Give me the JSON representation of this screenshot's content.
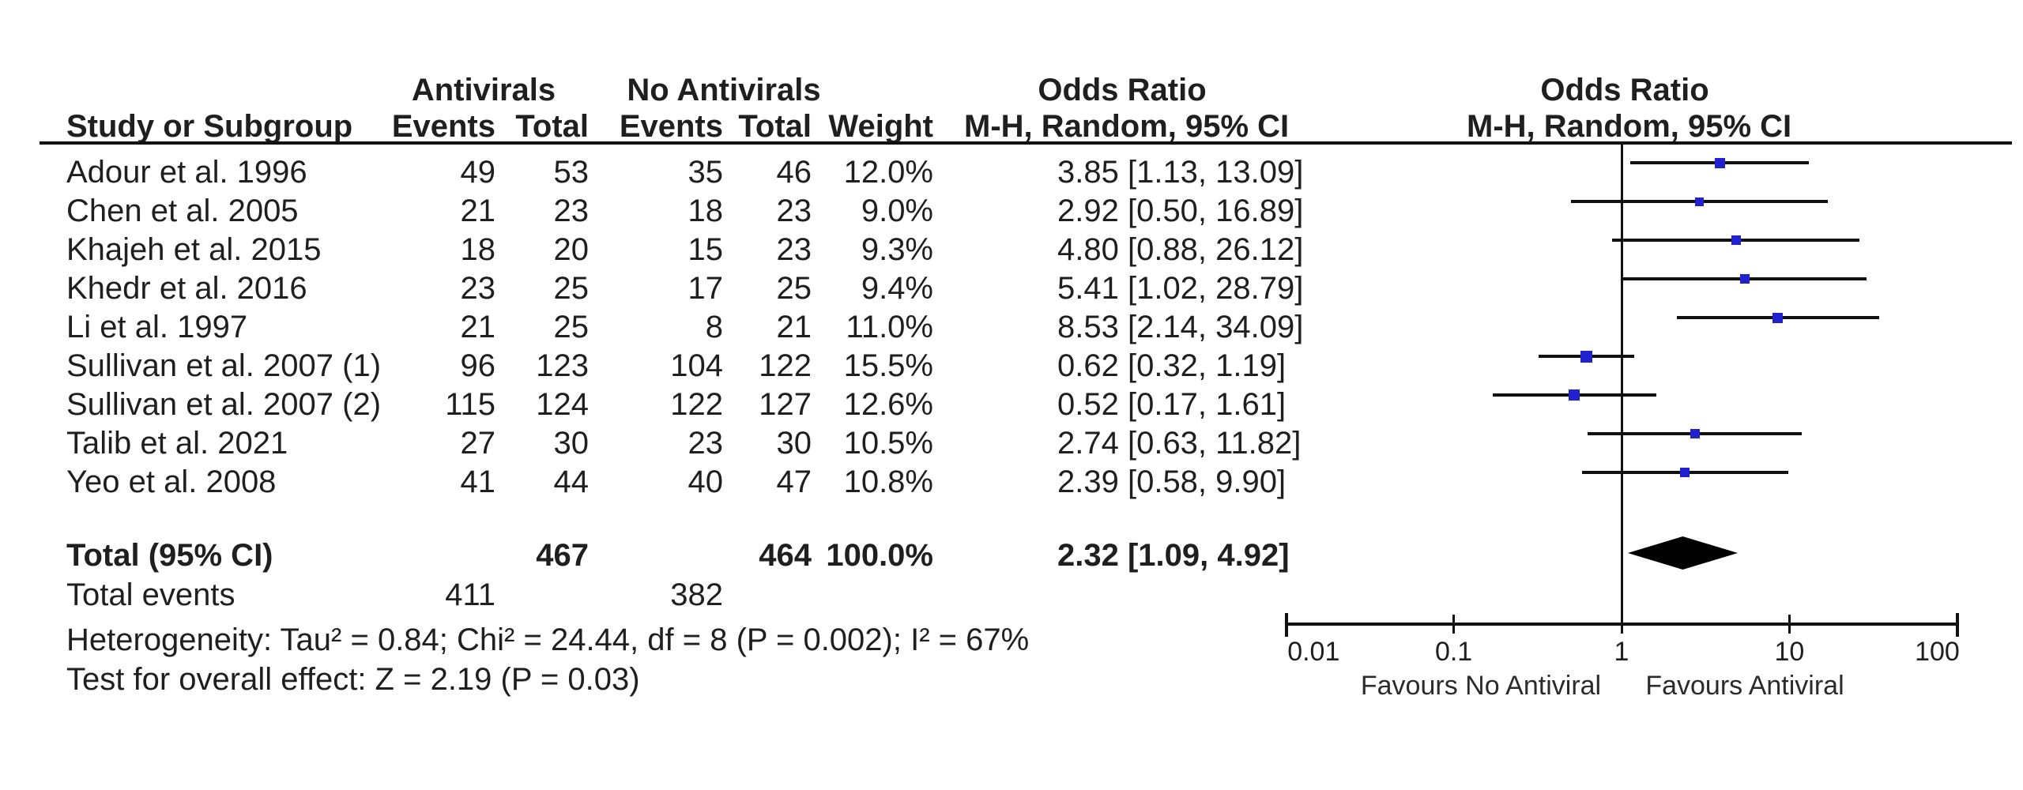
{
  "colors": {
    "marker_blue": "#2121cf",
    "ink": "#1f1f1f",
    "line_black": "#111111",
    "diamond_black": "#000000"
  },
  "header": {
    "group1": "Antivirals",
    "group2": "No Antivirals",
    "study_col": "Study or Subgroup",
    "events_col": "Events",
    "total_col": "Total",
    "weight_col": "Weight",
    "or_col_title": "Odds Ratio",
    "or_col_subtitle": "M-H, Random, 95% CI",
    "plot_title": "Odds Ratio",
    "plot_subtitle": "M-H, Random, 95% CI"
  },
  "chart_data": {
    "type": "forest",
    "effect_measure": "Odds Ratio, M-H, Random, 95% CI",
    "x_scale": "log10",
    "x_range": [
      0.01,
      100
    ],
    "x_ticks": [
      0.01,
      0.1,
      1,
      10,
      100
    ],
    "x_tick_labels": [
      "0.01",
      "0.1",
      "1",
      "10",
      "100"
    ],
    "axis_left_label": "Favours No Antiviral",
    "axis_right_label": "Favours Antiviral",
    "null_line": 1,
    "studies": [
      {
        "name": "Adour et al. 1996",
        "events1": 49,
        "total1": 53,
        "events2": 35,
        "total2": 46,
        "weight": "12.0%",
        "weight_pct": 12.0,
        "or": 3.85,
        "ci_low": 1.13,
        "ci_high": 13.09,
        "or_ci_text": "3.85 [1.13, 13.09]"
      },
      {
        "name": "Chen et al. 2005",
        "events1": 21,
        "total1": 23,
        "events2": 18,
        "total2": 23,
        "weight": "9.0%",
        "weight_pct": 9.0,
        "or": 2.92,
        "ci_low": 0.5,
        "ci_high": 16.89,
        "or_ci_text": "2.92 [0.50, 16.89]"
      },
      {
        "name": "Khajeh et al. 2015",
        "events1": 18,
        "total1": 20,
        "events2": 15,
        "total2": 23,
        "weight": "9.3%",
        "weight_pct": 9.3,
        "or": 4.8,
        "ci_low": 0.88,
        "ci_high": 26.12,
        "or_ci_text": "4.80 [0.88, 26.12]"
      },
      {
        "name": "Khedr et al. 2016",
        "events1": 23,
        "total1": 25,
        "events2": 17,
        "total2": 25,
        "weight": "9.4%",
        "weight_pct": 9.4,
        "or": 5.41,
        "ci_low": 1.02,
        "ci_high": 28.79,
        "or_ci_text": "5.41 [1.02, 28.79]"
      },
      {
        "name": "Li et al. 1997",
        "events1": 21,
        "total1": 25,
        "events2": 8,
        "total2": 21,
        "weight": "11.0%",
        "weight_pct": 11.0,
        "or": 8.53,
        "ci_low": 2.14,
        "ci_high": 34.09,
        "or_ci_text": "8.53 [2.14, 34.09]"
      },
      {
        "name": "Sullivan et al. 2007 (1)",
        "events1": 96,
        "total1": 123,
        "events2": 104,
        "total2": 122,
        "weight": "15.5%",
        "weight_pct": 15.5,
        "or": 0.62,
        "ci_low": 0.32,
        "ci_high": 1.19,
        "or_ci_text": "0.62 [0.32, 1.19]"
      },
      {
        "name": "Sullivan et al. 2007 (2)",
        "events1": 115,
        "total1": 124,
        "events2": 122,
        "total2": 127,
        "weight": "12.6%",
        "weight_pct": 12.6,
        "or": 0.52,
        "ci_low": 0.17,
        "ci_high": 1.61,
        "or_ci_text": "0.52 [0.17, 1.61]"
      },
      {
        "name": "Talib et al. 2021",
        "events1": 27,
        "total1": 30,
        "events2": 23,
        "total2": 30,
        "weight": "10.5%",
        "weight_pct": 10.5,
        "or": 2.74,
        "ci_low": 0.63,
        "ci_high": 11.82,
        "or_ci_text": "2.74 [0.63, 11.82]"
      },
      {
        "name": "Yeo et al. 2008",
        "events1": 41,
        "total1": 44,
        "events2": 40,
        "total2": 47,
        "weight": "10.8%",
        "weight_pct": 10.8,
        "or": 2.39,
        "ci_low": 0.58,
        "ci_high": 9.9,
        "or_ci_text": "2.39 [0.58, 9.90]"
      }
    ],
    "total": {
      "label": "Total (95% CI)",
      "total1": 467,
      "total2": 464,
      "weight": "100.0%",
      "or": 2.32,
      "ci_low": 1.09,
      "ci_high": 4.92,
      "or_ci_text": "2.32 [1.09, 4.92]"
    },
    "total_events": {
      "label": "Total events",
      "events1": 411,
      "events2": 382
    },
    "heterogeneity_text": "Heterogeneity: Tau² = 0.84; Chi² = 24.44, df = 8 (P = 0.002); I² = 67%",
    "overall_effect_text": "Test for overall effect: Z = 2.19 (P = 0.03)"
  }
}
